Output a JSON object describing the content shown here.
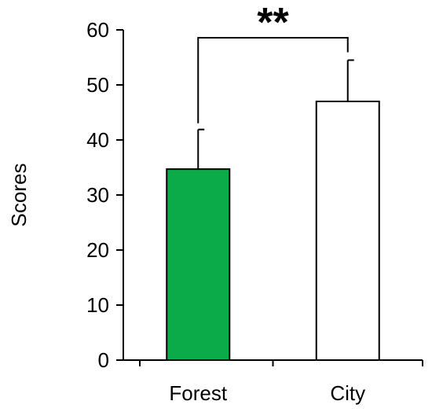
{
  "chart_data": {
    "type": "bar",
    "title": "",
    "xlabel": "",
    "ylabel": "Scores",
    "ylim": [
      0,
      60
    ],
    "yticks": [
      0,
      10,
      20,
      30,
      40,
      50,
      60
    ],
    "categories": [
      "Forest",
      "City"
    ],
    "values": [
      34.7,
      47.0
    ],
    "errors": [
      7.2,
      7.5
    ],
    "bar_colors": [
      "#0aab48",
      "#ffffff"
    ],
    "significance": {
      "between": [
        "Forest",
        "City"
      ],
      "label": "**"
    },
    "grid": false,
    "legend": "none"
  }
}
